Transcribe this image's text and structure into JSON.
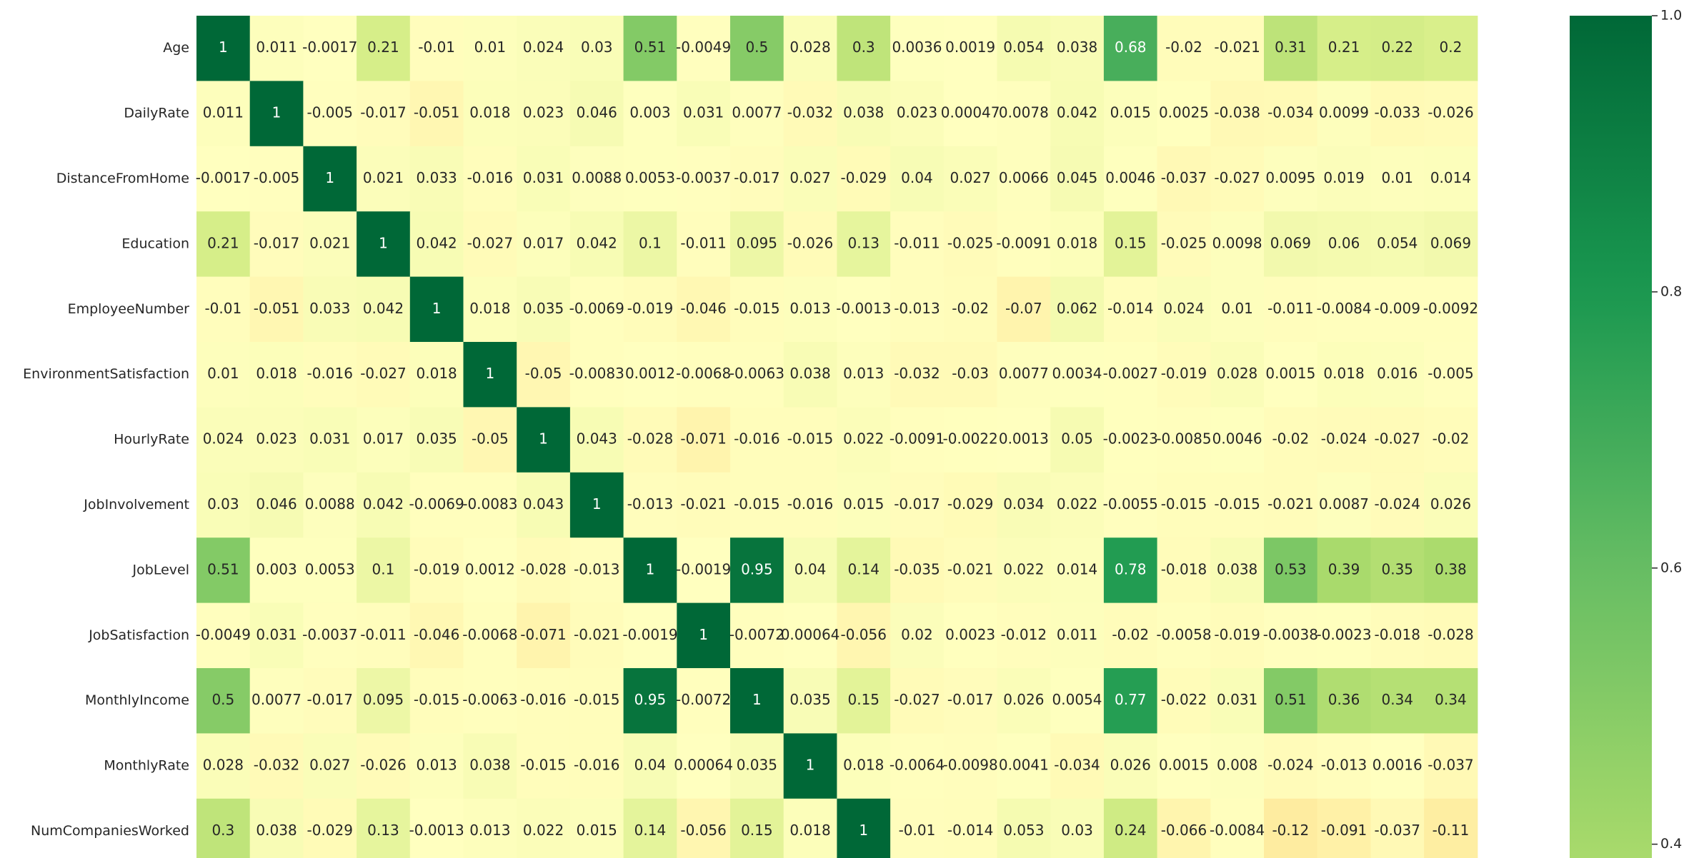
{
  "chart_data": {
    "type": "heatmap",
    "colormap": "RdYlGn",
    "vmin": 0.39,
    "vmax": 1.0,
    "rows": [
      "Age",
      "DailyRate",
      "DistanceFromHome",
      "Education",
      "EmployeeNumber",
      "EnvironmentSatisfaction",
      "HourlyRate",
      "JobInvolvement",
      "JobLevel",
      "JobSatisfaction",
      "MonthlyIncome",
      "MonthlyRate",
      "NumCompaniesWorked"
    ],
    "values": [
      [
        1.0,
        0.011,
        -0.0017,
        0.21,
        -0.01,
        0.01,
        0.024,
        0.03,
        0.51,
        -0.0049,
        0.5,
        0.028,
        0.3,
        0.0036,
        0.0019,
        0.054,
        0.038,
        0.68,
        -0.02,
        -0.021,
        0.31,
        0.21,
        0.22,
        0.2
      ],
      [
        0.011,
        1.0,
        -0.005,
        -0.017,
        -0.051,
        0.018,
        0.023,
        0.046,
        0.003,
        0.031,
        0.0077,
        -0.032,
        0.038,
        0.023,
        0.00047,
        0.0078,
        0.042,
        0.015,
        0.0025,
        -0.038,
        -0.034,
        0.0099,
        -0.033,
        -0.026
      ],
      [
        -0.0017,
        -0.005,
        1.0,
        0.021,
        0.033,
        -0.016,
        0.031,
        0.0088,
        0.0053,
        -0.0037,
        -0.017,
        0.027,
        -0.029,
        0.04,
        0.027,
        0.0066,
        0.045,
        0.0046,
        -0.037,
        -0.027,
        0.0095,
        0.019,
        0.01,
        0.014
      ],
      [
        0.21,
        -0.017,
        0.021,
        1.0,
        0.042,
        -0.027,
        0.017,
        0.042,
        0.1,
        -0.011,
        0.095,
        -0.026,
        0.13,
        -0.011,
        -0.025,
        -0.0091,
        0.018,
        0.15,
        -0.025,
        0.0098,
        0.069,
        0.06,
        0.054,
        0.069
      ],
      [
        -0.01,
        -0.051,
        0.033,
        0.042,
        1.0,
        0.018,
        0.035,
        -0.0069,
        -0.019,
        -0.046,
        -0.015,
        0.013,
        -0.0013,
        -0.013,
        -0.02,
        -0.07,
        0.062,
        -0.014,
        0.024,
        0.01,
        -0.011,
        -0.0084,
        -0.009,
        -0.0092
      ],
      [
        0.01,
        0.018,
        -0.016,
        -0.027,
        0.018,
        1.0,
        -0.05,
        -0.0083,
        0.0012,
        -0.0068,
        -0.0063,
        0.038,
        0.013,
        -0.032,
        -0.03,
        0.0077,
        0.0034,
        -0.0027,
        -0.019,
        0.028,
        0.0015,
        0.018,
        0.016,
        -0.005
      ],
      [
        0.024,
        0.023,
        0.031,
        0.017,
        0.035,
        -0.05,
        1.0,
        0.043,
        -0.028,
        -0.071,
        -0.016,
        -0.015,
        0.022,
        -0.0091,
        -0.0022,
        0.0013,
        0.05,
        -0.0023,
        -0.0085,
        0.0046,
        -0.02,
        -0.024,
        -0.027,
        -0.02
      ],
      [
        0.03,
        0.046,
        0.0088,
        0.042,
        -0.0069,
        -0.0083,
        0.043,
        1.0,
        -0.013,
        -0.021,
        -0.015,
        -0.016,
        0.015,
        -0.017,
        -0.029,
        0.034,
        0.022,
        -0.0055,
        -0.015,
        -0.015,
        -0.021,
        0.0087,
        -0.024,
        0.026
      ],
      [
        0.51,
        0.003,
        0.0053,
        0.1,
        -0.019,
        0.0012,
        -0.028,
        -0.013,
        1.0,
        -0.0019,
        0.95,
        0.04,
        0.14,
        -0.035,
        -0.021,
        0.022,
        0.014,
        0.78,
        -0.018,
        0.038,
        0.53,
        0.39,
        0.35,
        0.38
      ],
      [
        -0.0049,
        0.031,
        -0.0037,
        -0.011,
        -0.046,
        -0.0068,
        -0.071,
        -0.021,
        -0.0019,
        1.0,
        -0.0072,
        0.00064,
        -0.056,
        0.02,
        0.0023,
        -0.012,
        0.011,
        -0.02,
        -0.0058,
        -0.019,
        -0.0038,
        -0.0023,
        -0.018,
        -0.028
      ],
      [
        0.5,
        0.0077,
        -0.017,
        0.095,
        -0.015,
        -0.0063,
        -0.016,
        -0.015,
        0.95,
        -0.0072,
        1.0,
        0.035,
        0.15,
        -0.027,
        -0.017,
        0.026,
        0.0054,
        0.77,
        -0.022,
        0.031,
        0.51,
        0.36,
        0.34,
        0.34
      ],
      [
        0.028,
        -0.032,
        0.027,
        -0.026,
        0.013,
        0.038,
        -0.015,
        -0.016,
        0.04,
        0.00064,
        0.035,
        1.0,
        0.018,
        -0.0064,
        -0.0098,
        0.0041,
        -0.034,
        0.026,
        0.0015,
        0.008,
        -0.024,
        -0.013,
        0.0016,
        -0.037
      ],
      [
        0.3,
        0.038,
        -0.029,
        0.13,
        -0.0013,
        0.013,
        0.022,
        0.015,
        0.14,
        -0.056,
        0.15,
        0.018,
        1.0,
        -0.01,
        -0.014,
        0.053,
        0.03,
        0.24,
        -0.066,
        -0.0084,
        -0.12,
        -0.091,
        -0.037,
        -0.11
      ]
    ],
    "cell_text": [
      [
        "1",
        "0.011",
        "-0.0017",
        "0.21",
        "-0.01",
        "0.01",
        "0.024",
        "0.03",
        "0.51",
        "-0.0049",
        "0.5",
        "0.028",
        "0.3",
        "0.0036",
        "0.0019",
        "0.054",
        "0.038",
        "0.68",
        "-0.02",
        "-0.021",
        "0.31",
        "0.21",
        "0.22",
        "0.2"
      ],
      [
        "0.011",
        "1",
        "-0.005",
        "-0.017",
        "-0.051",
        "0.018",
        "0.023",
        "0.046",
        "0.003",
        "0.031",
        "0.0077",
        "-0.032",
        "0.038",
        "0.023",
        "0.00047",
        "0.0078",
        "0.042",
        "0.015",
        "0.0025",
        "-0.038",
        "-0.034",
        "0.0099",
        "-0.033",
        "-0.026"
      ],
      [
        "-0.0017",
        "-0.005",
        "1",
        "0.021",
        "0.033",
        "-0.016",
        "0.031",
        "0.0088",
        "0.0053",
        "-0.0037",
        "-0.017",
        "0.027",
        "-0.029",
        "0.04",
        "0.027",
        "0.0066",
        "0.045",
        "0.0046",
        "-0.037",
        "-0.027",
        "0.0095",
        "0.019",
        "0.01",
        "0.014"
      ],
      [
        "0.21",
        "-0.017",
        "0.021",
        "1",
        "0.042",
        "-0.027",
        "0.017",
        "0.042",
        "0.1",
        "-0.011",
        "0.095",
        "-0.026",
        "0.13",
        "-0.011",
        "-0.025",
        "-0.0091",
        "0.018",
        "0.15",
        "-0.025",
        "0.0098",
        "0.069",
        "0.06",
        "0.054",
        "0.069"
      ],
      [
        "-0.01",
        "-0.051",
        "0.033",
        "0.042",
        "1",
        "0.018",
        "0.035",
        "-0.0069",
        "-0.019",
        "-0.046",
        "-0.015",
        "0.013",
        "-0.0013",
        "-0.013",
        "-0.02",
        "-0.07",
        "0.062",
        "-0.014",
        "0.024",
        "0.01",
        "-0.011",
        "-0.0084",
        "-0.009",
        "-0.0092"
      ],
      [
        "0.01",
        "0.018",
        "-0.016",
        "-0.027",
        "0.018",
        "1",
        "-0.05",
        "-0.0083",
        "0.0012",
        "-0.0068",
        "-0.0063",
        "0.038",
        "0.013",
        "-0.032",
        "-0.03",
        "0.0077",
        "0.0034",
        "-0.0027",
        "-0.019",
        "0.028",
        "0.0015",
        "0.018",
        "0.016",
        "-0.005"
      ],
      [
        "0.024",
        "0.023",
        "0.031",
        "0.017",
        "0.035",
        "-0.05",
        "1",
        "0.043",
        "-0.028",
        "-0.071",
        "-0.016",
        "-0.015",
        "0.022",
        "-0.0091",
        "-0.0022",
        "0.0013",
        "0.05",
        "-0.0023",
        "-0.0085",
        "0.0046",
        "-0.02",
        "-0.024",
        "-0.027",
        "-0.02"
      ],
      [
        "0.03",
        "0.046",
        "0.0088",
        "0.042",
        "-0.0069",
        "-0.0083",
        "0.043",
        "1",
        "-0.013",
        "-0.021",
        "-0.015",
        "-0.016",
        "0.015",
        "-0.017",
        "-0.029",
        "0.034",
        "0.022",
        "-0.0055",
        "-0.015",
        "-0.015",
        "-0.021",
        "0.0087",
        "-0.024",
        "0.026"
      ],
      [
        "0.51",
        "0.003",
        "0.0053",
        "0.1",
        "-0.019",
        "0.0012",
        "-0.028",
        "-0.013",
        "1",
        "-0.0019",
        "0.95",
        "0.04",
        "0.14",
        "-0.035",
        "-0.021",
        "0.022",
        "0.014",
        "0.78",
        "-0.018",
        "0.038",
        "0.53",
        "0.39",
        "0.35",
        "0.38"
      ],
      [
        "-0.0049",
        "0.031",
        "-0.0037",
        "-0.011",
        "-0.046",
        "-0.0068",
        "-0.071",
        "-0.021",
        "-0.0019",
        "1",
        "-0.0072",
        "0.00064",
        "-0.056",
        "0.02",
        "0.0023",
        "-0.012",
        "0.011",
        "-0.02",
        "-0.0058",
        "-0.019",
        "-0.0038",
        "-0.0023",
        "-0.018",
        "-0.028"
      ],
      [
        "0.5",
        "0.0077",
        "-0.017",
        "0.095",
        "-0.015",
        "-0.0063",
        "-0.016",
        "-0.015",
        "0.95",
        "-0.0072",
        "1",
        "0.035",
        "0.15",
        "-0.027",
        "-0.017",
        "0.026",
        "0.0054",
        "0.77",
        "-0.022",
        "0.031",
        "0.51",
        "0.36",
        "0.34",
        "0.34"
      ],
      [
        "0.028",
        "-0.032",
        "0.027",
        "-0.026",
        "0.013",
        "0.038",
        "-0.015",
        "-0.016",
        "0.04",
        "0.00064",
        "0.035",
        "1",
        "0.018",
        "-0.0064",
        "-0.0098",
        "0.0041",
        "-0.034",
        "0.026",
        "0.0015",
        "0.008",
        "-0.024",
        "-0.013",
        "0.0016",
        "-0.037"
      ],
      [
        "0.3",
        "0.038",
        "-0.029",
        "0.13",
        "-0.0013",
        "0.013",
        "0.022",
        "0.015",
        "0.14",
        "-0.056",
        "0.15",
        "0.018",
        "1",
        "-0.01",
        "-0.014",
        "0.053",
        "0.03",
        "0.24",
        "-0.066",
        "-0.0084",
        "-0.12",
        "-0.091",
        "-0.037",
        "-0.11"
      ]
    ],
    "colorbar": {
      "ticks": [
        0.4,
        0.6,
        0.8,
        1.0
      ],
      "tick_labels": [
        "0.4",
        "0.6",
        "0.8",
        "1.0"
      ]
    }
  }
}
